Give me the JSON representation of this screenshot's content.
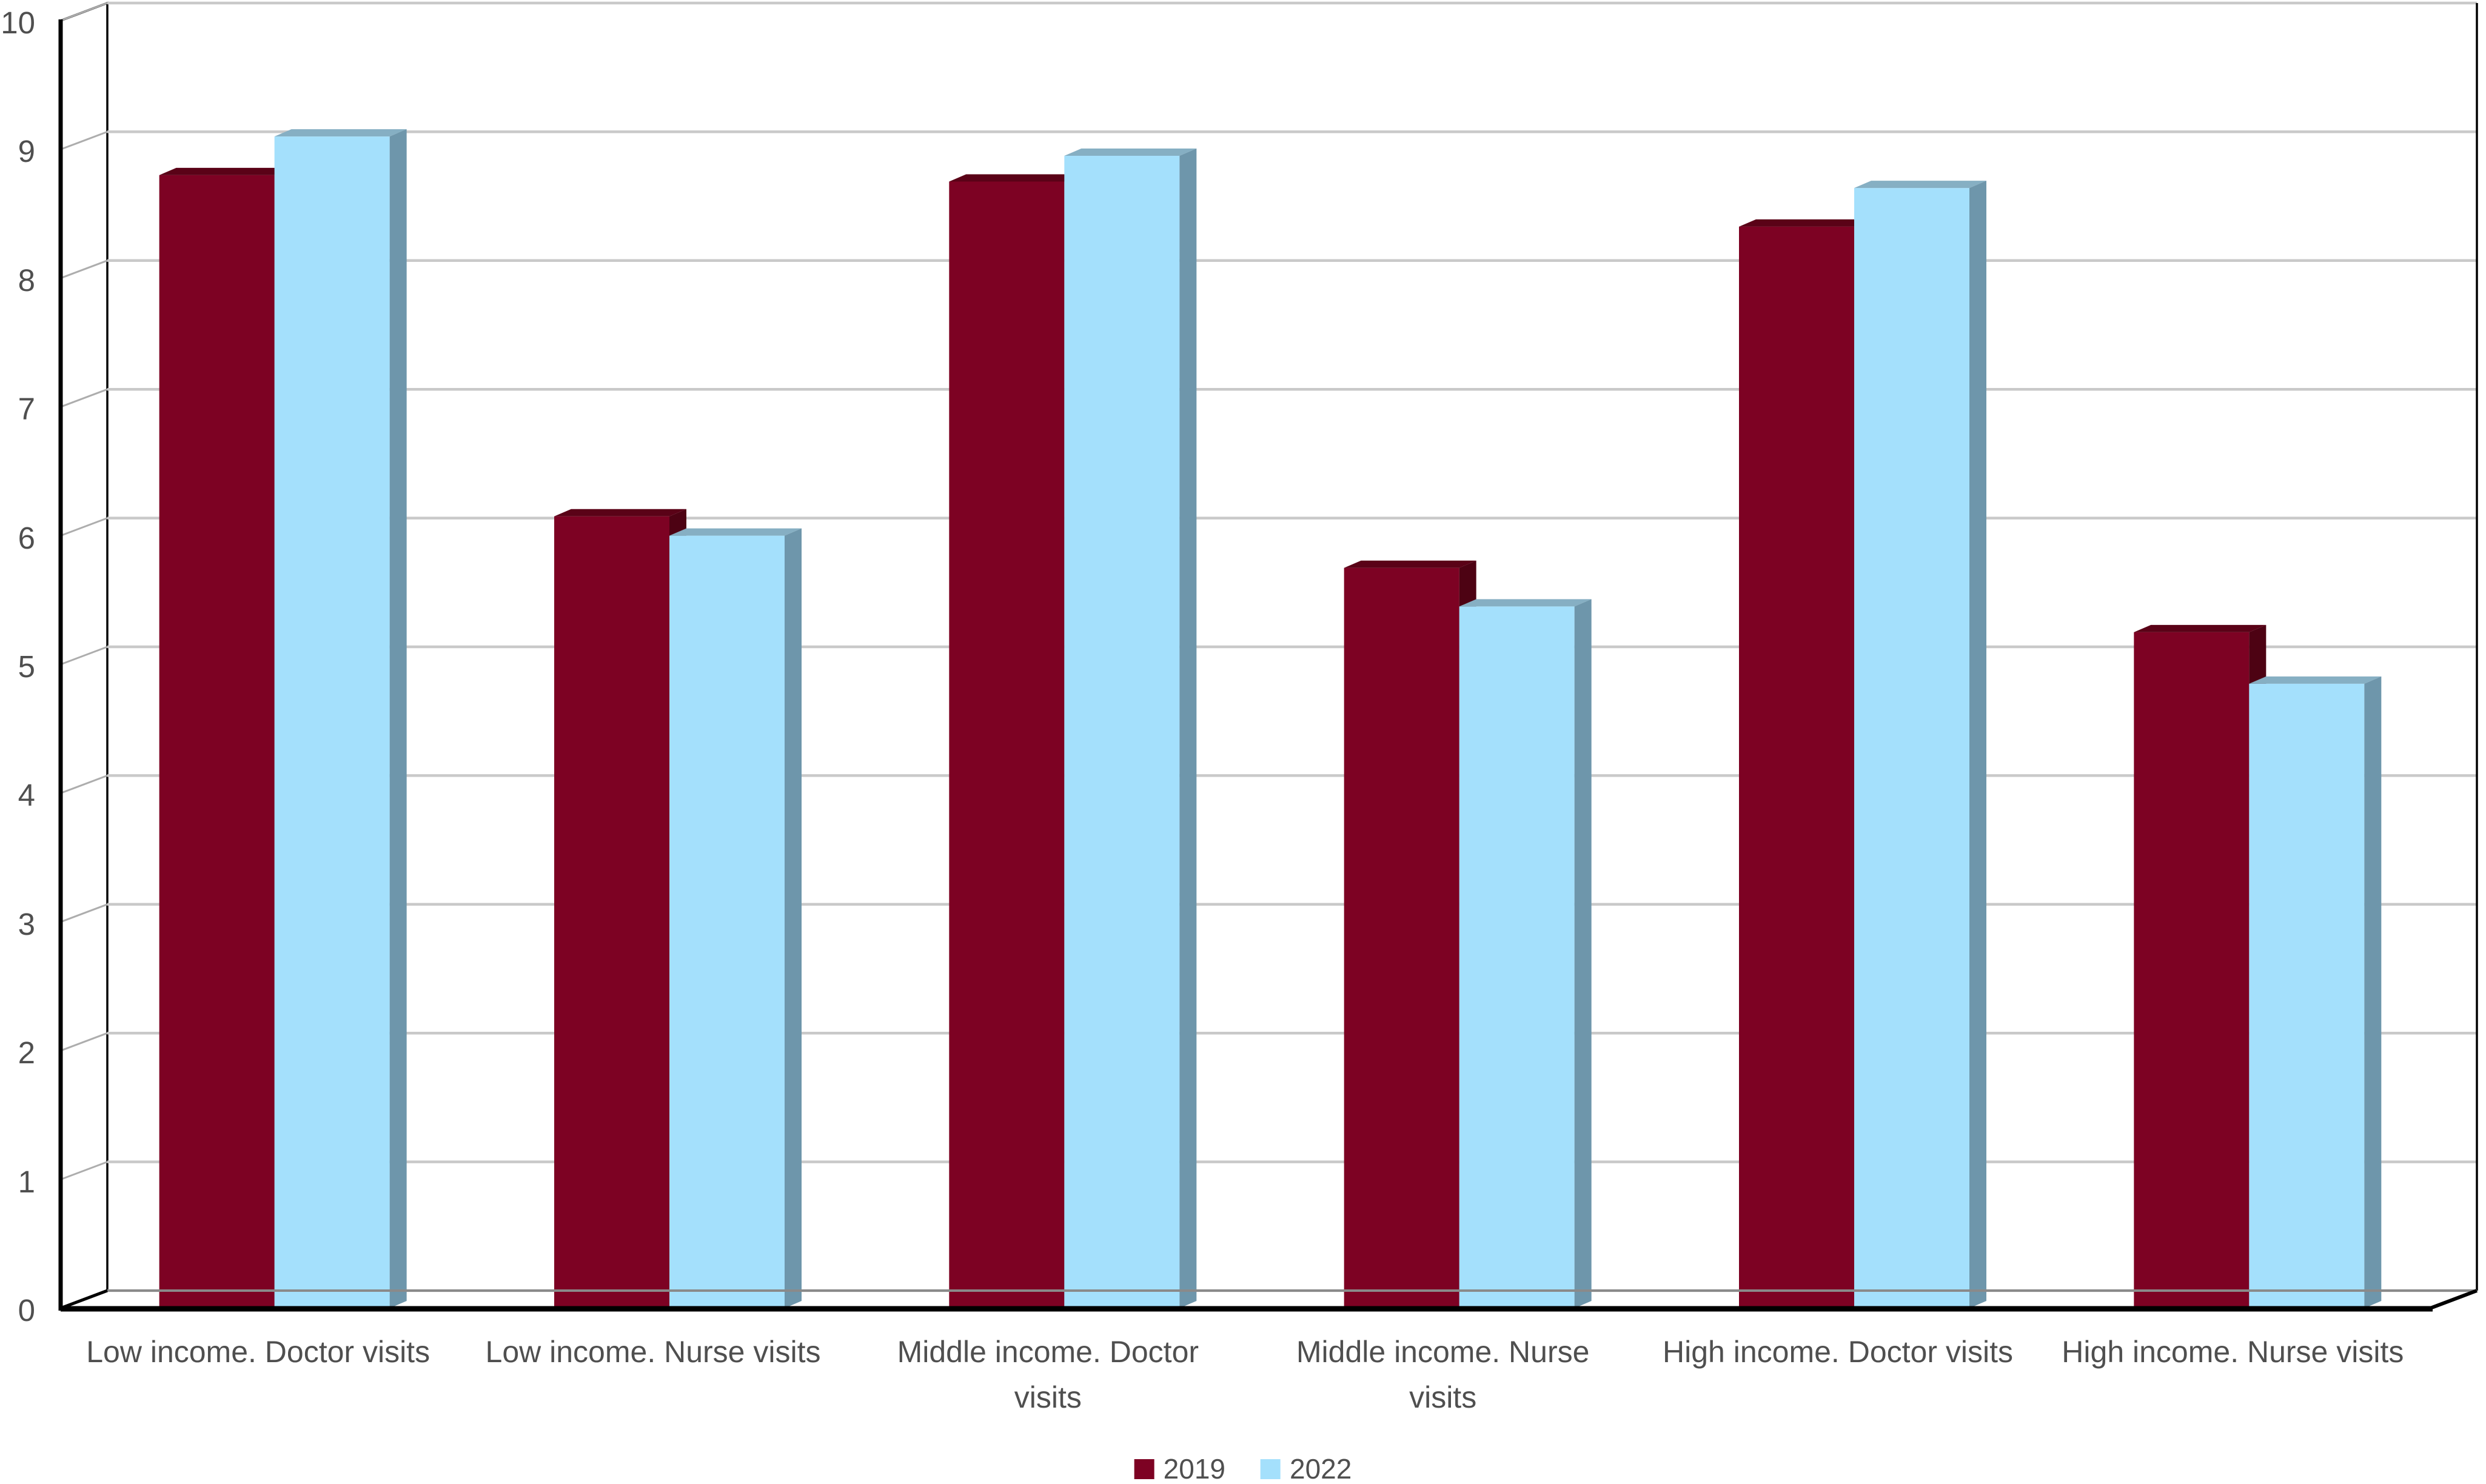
{
  "chart_data": {
    "type": "bar",
    "style": "3d-clustered-column",
    "title": "",
    "xlabel": "",
    "ylabel": "",
    "categories": [
      "Low income. Doctor visits",
      "Low income. Nurse visits",
      "Middle income. Doctor visits",
      "Middle income. Nurse visits",
      "High income. Doctor visits",
      "High income. Nurse visits"
    ],
    "series": [
      {
        "name": "2019",
        "values": [
          8.8,
          6.15,
          8.75,
          5.75,
          8.4,
          5.25
        ]
      },
      {
        "name": "2022",
        "values": [
          9.1,
          6.0,
          8.95,
          5.45,
          8.7,
          4.85
        ]
      }
    ],
    "ylim": [
      0,
      10
    ],
    "ytick_labels": [
      "0",
      "1",
      "2",
      "3",
      "4",
      "5",
      "6",
      "7",
      "8",
      "9",
      "10"
    ],
    "grid": true,
    "legend_position": "bottom"
  },
  "xaxis": {
    "label_lines": [
      [
        "Low income. Doctor visits"
      ],
      [
        "Low income. Nurse visits"
      ],
      [
        "Middle income. Doctor",
        "visits"
      ],
      [
        "Middle income. Nurse",
        "visits"
      ],
      [
        "High income. Doctor visits"
      ],
      [
        "High income. Nurse visits"
      ]
    ]
  },
  "legend": {
    "items": [
      {
        "label": "2019",
        "color": "#7D0223"
      },
      {
        "label": "2022",
        "color": "#A4E0FC"
      }
    ]
  },
  "colors": {
    "series_2019_front": "#7D0223",
    "series_2019_top": "#5A0217",
    "series_2019_side": "#4D0213",
    "series_2022_front": "#A4E0FC",
    "series_2022_top": "#86AFC3",
    "series_2022_side": "#6E96AB",
    "gridline": "#C9C9C9",
    "wall_stub": "#ADADAD",
    "axis": "#000000",
    "text": "#4F4F4F",
    "background": "#FFFFFF"
  }
}
